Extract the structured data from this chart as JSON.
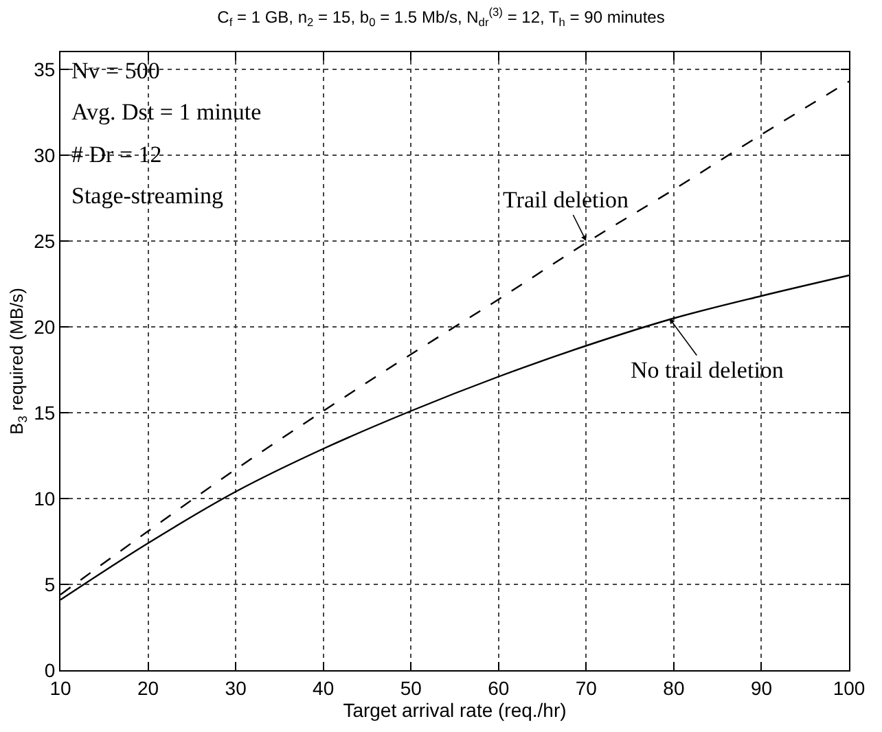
{
  "chart_data": {
    "type": "line",
    "title": "C$_{f}$ = 1 GB, n$_{2}$ = 15, b$_{0}$ = 1.5 Mb/s, N$_{dr}$$^{(3)}$ = 12, T$_{h}$ = 90 minutes",
    "xlabel": "Target arrival rate (req./hr)",
    "ylabel": "B$_{3}$ required (MB/s)",
    "x": [
      10,
      20,
      30,
      40,
      50,
      60,
      70,
      80,
      90,
      100
    ],
    "series": [
      {
        "color": "#000000",
        "line_style": "dashed",
        "values": [
          4.4,
          8.1,
          11.7,
          15.1,
          18.4,
          21.6,
          24.9,
          28.0,
          31.2,
          34.3
        ]
      },
      {
        "color": "#000000",
        "line_style": "solid",
        "values": [
          4.1,
          7.4,
          10.4,
          12.9,
          15.1,
          17.1,
          18.9,
          20.5,
          21.8,
          23.0
        ]
      }
    ],
    "xlim": [
      10,
      100
    ],
    "xticks": [
      10,
      20,
      30,
      40,
      50,
      60,
      70,
      80,
      90,
      100
    ],
    "ylim": [
      0,
      36
    ],
    "yticks": [
      0,
      5,
      10,
      15,
      20,
      25,
      30,
      35
    ],
    "grid": true,
    "marker": "none",
    "annotations": [
      "Nv = 500",
      "Avg. Dst = 1 minute",
      "# Dr = 12",
      "Stage-streaming",
      {
        "text": "Trail deletion",
        "x": 70,
        "y": 25
      },
      {
        "text": "No trail deletion",
        "x": 79.5,
        "y": 20.5
      }
    ]
  }
}
